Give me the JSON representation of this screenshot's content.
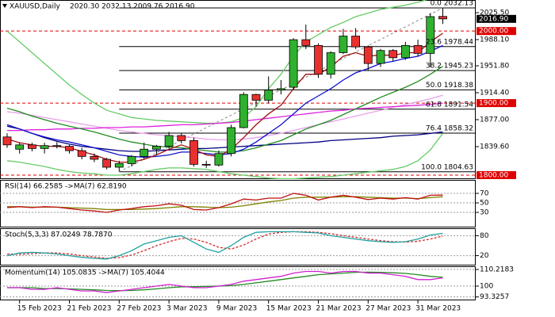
{
  "chart_data": [
    {
      "type": "candlestick",
      "title": "XAUUSD,Daily",
      "subtitle": "2020.30 2032.13 2009.76 2016.90",
      "categories": [
        null,
        "15 Feb 2023",
        null,
        null,
        null,
        "21 Feb 2023",
        null,
        null,
        null,
        "27 Feb 2023",
        null,
        null,
        null,
        "3 Mar 2023",
        null,
        null,
        null,
        "9 Mar 2023",
        null,
        null,
        null,
        "15 Mar 2023",
        null,
        null,
        null,
        "21 Mar 2023",
        null,
        null,
        null,
        "27 Mar 2023",
        null,
        null,
        null,
        "31 Mar 2023",
        null,
        null
      ],
      "open": [
        1853,
        1836,
        1842,
        1837,
        1841,
        1840,
        1834,
        1826,
        1822,
        1811,
        1816,
        1826,
        1836,
        1840,
        1855,
        1848,
        1815,
        1814,
        1830,
        1866,
        1912,
        1904,
        1918,
        1922,
        1988,
        1980,
        1940,
        1970,
        1993,
        1978,
        1955,
        1973,
        1963,
        1980,
        1969,
        2020.3
      ],
      "high": [
        1858,
        1845,
        1845,
        1845,
        1846,
        1842,
        1838,
        1830,
        1824,
        1820,
        1828,
        1845,
        1842,
        1860,
        1858,
        1852,
        1820,
        1834,
        1870,
        1915,
        1913,
        1937,
        1932,
        1990,
        2009,
        1983,
        1972,
        2003,
        2004,
        1980,
        1975,
        1975,
        1985,
        1988,
        2025,
        2032.13
      ],
      "low": [
        1838,
        1830,
        1833,
        1830,
        1837,
        1830,
        1822,
        1818,
        1808,
        1805,
        1812,
        1822,
        1828,
        1837,
        1844,
        1812,
        1810,
        1812,
        1826,
        1865,
        1895,
        1900,
        1912,
        1918,
        1975,
        1935,
        1934,
        1968,
        1975,
        1945,
        1950,
        1958,
        1960,
        1965,
        1950,
        2009.76
      ],
      "close": [
        1842,
        1842,
        1837,
        1841,
        1840,
        1834,
        1826,
        1822,
        1811,
        1816,
        1826,
        1836,
        1840,
        1855,
        1848,
        1815,
        1814,
        1830,
        1866,
        1912,
        1904,
        1918,
        1920,
        1988,
        1980,
        1940,
        1970,
        1993,
        1978,
        1955,
        1973,
        1963,
        1980,
        1969,
        2020,
        2016.9
      ],
      "up_color": "#2fb12f",
      "down_color": "#e8312f",
      "series": [
        {
          "color": "#66cc66",
          "values": [
            2000,
            1985,
            1970,
            1955,
            1940,
            1925,
            1912,
            1900,
            1890,
            1885,
            1880,
            1878,
            1876,
            1875,
            1874,
            1873,
            1872,
            1872,
            1874,
            1880,
            1895,
            1920,
            1940,
            1965,
            1985,
            1995,
            2005,
            2012,
            2020,
            2025,
            2030,
            2033,
            2036,
            2040,
            2045,
            2050
          ]
        },
        {
          "color": "#66cc66",
          "values": [
            1820,
            1818,
            1815,
            1812,
            1808,
            1805,
            1803,
            1802,
            1800,
            1800,
            1802,
            1805,
            1808,
            1810,
            1810,
            1809,
            1808,
            1805,
            1802,
            1800,
            1798,
            1796,
            1795,
            1795,
            1796,
            1797,
            1798,
            1800,
            1802,
            1804,
            1806,
            1808,
            1812,
            1820,
            1835,
            1858
          ]
        },
        {
          "color": "#000080",
          "values": [
            1868,
            1864,
            1858,
            1852,
            1847,
            1843,
            1840,
            1838,
            1836,
            1834,
            1833,
            1833,
            1834,
            1835,
            1836,
            1837,
            1837,
            1838,
            1839,
            1840,
            1841,
            1842,
            1843,
            1844,
            1845,
            1846,
            1848,
            1849,
            1850,
            1851,
            1852,
            1854,
            1855,
            1856,
            1858,
            1860
          ]
        },
        {
          "color": "#e9a0e9",
          "values": [
            1888,
            1886,
            1883,
            1880,
            1877,
            1874,
            1871,
            1868,
            1865,
            1862,
            1860,
            1858,
            1856,
            1855,
            1853,
            1852,
            1850,
            1849,
            1849,
            1850,
            1852,
            1855,
            1858,
            1862,
            1866,
            1870,
            1874,
            1878,
            1882,
            1886,
            1890,
            1894,
            1898,
            1902,
            1906,
            1911
          ]
        },
        {
          "color": "#dd22dd",
          "values": [
            1862,
            1862,
            1863,
            1863,
            1864,
            1864,
            1865,
            1865,
            1866,
            1866,
            1867,
            1867,
            1868,
            1869,
            1870,
            1870,
            1871,
            1872,
            1873,
            1875,
            1877,
            1879,
            1881,
            1883,
            1885,
            1887,
            1889,
            1890,
            1892,
            1893,
            1894,
            1895,
            1896,
            1897,
            1898,
            1900
          ]
        },
        {
          "color": "#228b22",
          "values": [
            1893,
            1888,
            1882,
            1877,
            1872,
            1868,
            1864,
            1860,
            1855,
            1850,
            1846,
            1843,
            1840,
            1839,
            1838,
            1836,
            1834,
            1832,
            1832,
            1834,
            1838,
            1843,
            1848,
            1856,
            1864,
            1870,
            1876,
            1884,
            1892,
            1900,
            1908,
            1915,
            1922,
            1930,
            1940,
            1951
          ]
        },
        {
          "color": "#1010d0",
          "values": [
            1870,
            1864,
            1858,
            1853,
            1849,
            1846,
            1842,
            1838,
            1833,
            1828,
            1826,
            1825,
            1826,
            1828,
            1832,
            1832,
            1830,
            1828,
            1830,
            1836,
            1846,
            1858,
            1870,
            1885,
            1900,
            1910,
            1920,
            1932,
            1942,
            1948,
            1955,
            1958,
            1962,
            1965,
            1972,
            1980
          ]
        },
        {
          "color": "#a01010",
          "values": [
            1850,
            1845,
            1842,
            1840,
            1840,
            1838,
            1833,
            1828,
            1822,
            1818,
            1818,
            1822,
            1828,
            1836,
            1842,
            1836,
            1828,
            1826,
            1836,
            1852,
            1870,
            1885,
            1897,
            1920,
            1940,
            1940,
            1950,
            1965,
            1970,
            1965,
            1967,
            1966,
            1970,
            1970,
            1985,
            1997
          ]
        }
      ],
      "fib_levels": [
        {
          "value": 2032.13,
          "label": "0.0 2032.13"
        },
        {
          "value": 1978.44,
          "label": "23.6 1978.44"
        },
        {
          "value": 1945.23,
          "label": "38.2 1945.23"
        },
        {
          "value": 1918.38,
          "label": "50.0 1918.38"
        },
        {
          "value": 1891.54,
          "label": "61.8 1891.54"
        },
        {
          "value": 1858.32,
          "label": "76.4 1858.32"
        },
        {
          "value": 1804.63,
          "label": "100.0 1804.63"
        }
      ],
      "levels": [
        {
          "value": 2000,
          "label": "2000.00"
        },
        {
          "value": 1900,
          "label": "1900.00"
        },
        {
          "value": 1800,
          "label": "1800.00"
        }
      ],
      "level_color": "#e00000",
      "price_tag": {
        "value": 2016.9,
        "label": "2016.90"
      },
      "ylim": [
        1794.5,
        2043.1
      ],
      "yticks": [
        {
          "value": 2025.5,
          "label": "2025.50"
        },
        {
          "value": 1988.1,
          "label": "1988.10"
        },
        {
          "value": 1951.8,
          "label": "1951.80"
        },
        {
          "value": 1914.4,
          "label": "1914.40"
        },
        {
          "value": 1877,
          "label": "1877.00"
        },
        {
          "value": 1839.6,
          "label": "1839.60"
        }
      ]
    },
    {
      "type": "line",
      "title": "RSI(14) 66.2585 ->MA(7) 62.8190",
      "series": [
        {
          "color": "#808000",
          "values": [
            42,
            42,
            41,
            41,
            41,
            40,
            39,
            38,
            36,
            36,
            36,
            37,
            38,
            40,
            42,
            42,
            41,
            40,
            41,
            44,
            48,
            52,
            55,
            60,
            62,
            62,
            62,
            63,
            63,
            62,
            61,
            60,
            60,
            59,
            61,
            62.819
          ]
        },
        {
          "color": "#c01010",
          "values": [
            40,
            42,
            40,
            42,
            41,
            38,
            35,
            33,
            30,
            35,
            38,
            42,
            44,
            48,
            45,
            36,
            35,
            40,
            48,
            58,
            56,
            60,
            60,
            70,
            66,
            56,
            62,
            66,
            62,
            57,
            60,
            58,
            61,
            58,
            66,
            66.2585
          ]
        }
      ],
      "ylim": [
        0,
        100
      ],
      "yticks": [
        70,
        50,
        30
      ]
    },
    {
      "type": "line",
      "title": "Stoch(5,3,3) 87.0249 78.7870",
      "series": [
        {
          "color": "#d03030",
          "dashed": true,
          "values": [
            25,
            24,
            26,
            28,
            28,
            25,
            20,
            16,
            12,
            14,
            22,
            35,
            50,
            62,
            72,
            70,
            60,
            45,
            40,
            52,
            70,
            85,
            90,
            92,
            92,
            90,
            86,
            80,
            75,
            70,
            65,
            62,
            61,
            63,
            70,
            78.787
          ]
        },
        {
          "color": "#20a0a0",
          "values": [
            20,
            28,
            30,
            28,
            25,
            20,
            15,
            12,
            10,
            20,
            35,
            55,
            65,
            75,
            80,
            60,
            40,
            30,
            50,
            75,
            90,
            92,
            92,
            92,
            90,
            88,
            80,
            75,
            70,
            65,
            62,
            60,
            62,
            70,
            82,
            87.0249
          ]
        }
      ],
      "ylim": [
        0,
        100
      ],
      "yticks": [
        80,
        20
      ]
    },
    {
      "type": "line",
      "title": "Momentum(14) 105.0835 ->MA(7) 105.4044",
      "series": [
        {
          "color": "#228b22",
          "values": [
            99,
            99,
            99,
            98.5,
            98.5,
            98.3,
            98,
            97.7,
            97.3,
            97.2,
            97.3,
            97.7,
            98.3,
            99,
            99.5,
            99.6,
            99.8,
            100,
            100.3,
            101,
            102,
            103,
            104,
            105,
            106,
            107,
            107.5,
            108,
            108.5,
            108.6,
            108.5,
            108.2,
            107.8,
            107,
            106,
            105.4044
          ]
        },
        {
          "color": "#d020d0",
          "values": [
            99,
            99,
            98,
            98,
            99,
            98,
            97,
            97,
            96,
            97,
            98,
            99,
            100,
            101,
            100,
            99,
            99,
            100,
            101,
            103,
            104,
            105,
            106,
            108,
            109,
            109,
            108,
            109,
            109,
            108,
            108,
            107,
            106,
            104,
            104,
            105.0835
          ]
        }
      ],
      "ylim": [
        91.7,
        111.7
      ],
      "yticks": [
        {
          "value": 110.2183,
          "label": "110.2183"
        },
        100,
        {
          "value": 93.3257,
          "label": "93.3257"
        }
      ]
    }
  ]
}
